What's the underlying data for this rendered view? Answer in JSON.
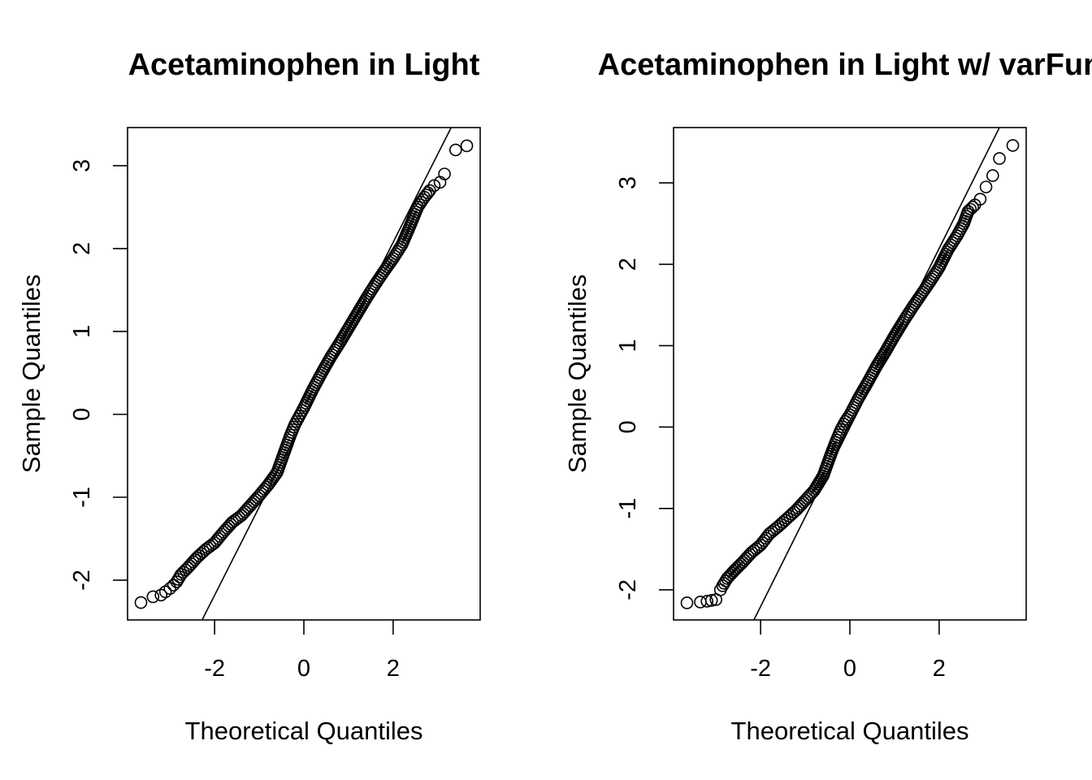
{
  "chart_data": [
    {
      "type": "scatter",
      "title": "Acetaminophen in Light",
      "xlabel": "Theoretical Quantiles",
      "ylabel": "Sample Quantiles",
      "xlim": [
        -3.95,
        3.95
      ],
      "ylim": [
        -2.48,
        3.46
      ],
      "xticks": [
        -2,
        0,
        2
      ],
      "yticks": [
        -2,
        -1,
        0,
        1,
        2,
        3
      ],
      "grid": false,
      "reference_line": {
        "x": [
          -2.28,
          3.3
        ],
        "y": [
          -2.48,
          3.46
        ]
      },
      "points": {
        "x": [
          -3.65,
          -3.38,
          -3.2,
          -3.1,
          -3.0,
          -2.92,
          -2.85,
          -2.75,
          -2.6,
          -2.4,
          -2.2,
          -2.0,
          -1.8,
          -1.6,
          -1.4,
          -1.2,
          -1.0,
          -0.8,
          -0.6,
          -0.5,
          -0.4,
          -0.3,
          -0.2,
          -0.1,
          0.0,
          0.2,
          0.4,
          0.6,
          0.8,
          1.0,
          1.2,
          1.4,
          1.6,
          1.8,
          2.0,
          2.2,
          2.4,
          2.55,
          2.7,
          2.82,
          2.92,
          3.05,
          3.15,
          3.4,
          3.65
        ],
        "y": [
          -2.27,
          -2.2,
          -2.18,
          -2.14,
          -2.1,
          -2.06,
          -2.02,
          -1.93,
          -1.85,
          -1.73,
          -1.63,
          -1.55,
          -1.42,
          -1.3,
          -1.22,
          -1.1,
          -0.98,
          -0.85,
          -0.7,
          -0.55,
          -0.4,
          -0.25,
          -0.12,
          -0.02,
          0.08,
          0.3,
          0.5,
          0.69,
          0.86,
          1.04,
          1.22,
          1.4,
          1.57,
          1.73,
          1.88,
          2.05,
          2.3,
          2.5,
          2.62,
          2.7,
          2.76,
          2.8,
          2.9,
          3.19,
          3.24
        ]
      }
    },
    {
      "type": "scatter",
      "title": "Acetaminophen in Light w/ varFun",
      "xlabel": "Theoretical Quantiles",
      "ylabel": "Sample Quantiles",
      "xlim": [
        -3.95,
        3.95
      ],
      "ylim": [
        -2.37,
        3.68
      ],
      "xticks": [
        -2,
        0,
        2
      ],
      "yticks": [
        -2,
        -1,
        0,
        1,
        2,
        3
      ],
      "grid": false,
      "reference_line": {
        "x": [
          -2.15,
          3.35
        ],
        "y": [
          -2.37,
          3.68
        ]
      },
      "points": {
        "x": [
          -3.65,
          -3.35,
          -3.2,
          -3.1,
          -3.0,
          -2.9,
          -2.85,
          -2.75,
          -2.6,
          -2.4,
          -2.2,
          -2.0,
          -1.8,
          -1.6,
          -1.4,
          -1.2,
          -1.0,
          -0.8,
          -0.6,
          -0.5,
          -0.4,
          -0.3,
          -0.2,
          -0.1,
          0.0,
          0.2,
          0.4,
          0.6,
          0.8,
          1.0,
          1.2,
          1.4,
          1.6,
          1.8,
          2.0,
          2.2,
          2.4,
          2.55,
          2.65,
          2.8,
          2.92,
          3.05,
          3.2,
          3.35,
          3.65
        ],
        "y": [
          -2.16,
          -2.15,
          -2.14,
          -2.13,
          -2.12,
          -2.0,
          -1.95,
          -1.86,
          -1.77,
          -1.66,
          -1.54,
          -1.45,
          -1.31,
          -1.22,
          -1.12,
          -1.02,
          -0.9,
          -0.78,
          -0.6,
          -0.45,
          -0.3,
          -0.16,
          -0.03,
          0.07,
          0.15,
          0.36,
          0.55,
          0.75,
          0.93,
          1.12,
          1.3,
          1.47,
          1.63,
          1.79,
          1.96,
          2.18,
          2.35,
          2.5,
          2.65,
          2.73,
          2.8,
          2.95,
          3.09,
          3.3,
          3.46
        ]
      }
    }
  ]
}
